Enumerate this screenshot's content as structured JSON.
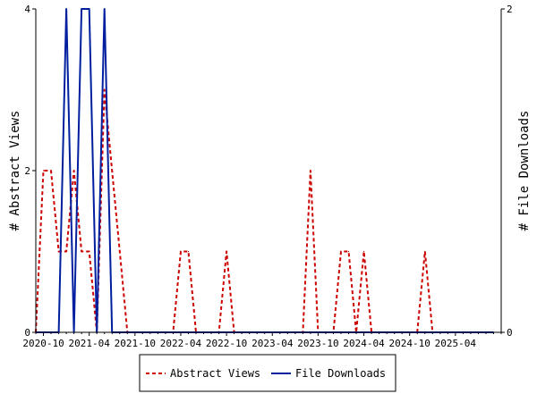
{
  "chart_data": {
    "type": "line",
    "title": "",
    "x": [
      "2020-09",
      "2020-10",
      "2020-11",
      "2020-12",
      "2021-01",
      "2021-02",
      "2021-03",
      "2021-04",
      "2021-05",
      "2021-06",
      "2021-07",
      "2021-08",
      "2021-09",
      "2021-10",
      "2021-11",
      "2021-12",
      "2022-01",
      "2022-02",
      "2022-03",
      "2022-04",
      "2022-05",
      "2022-06",
      "2022-07",
      "2022-08",
      "2022-09",
      "2022-10",
      "2022-11",
      "2022-12",
      "2023-01",
      "2023-02",
      "2023-03",
      "2023-04",
      "2023-05",
      "2023-06",
      "2023-07",
      "2023-08",
      "2023-09",
      "2023-10",
      "2023-11",
      "2023-12",
      "2024-01",
      "2024-02",
      "2024-03",
      "2024-04",
      "2024-05",
      "2024-06",
      "2024-07",
      "2024-08",
      "2024-09",
      "2024-10",
      "2024-11",
      "2024-12",
      "2025-01",
      "2025-02",
      "2025-03",
      "2025-04",
      "2025-05",
      "2025-06",
      "2025-07",
      "2025-08",
      "2025-09"
    ],
    "x_tick_labels": [
      "2020-10",
      "2021-04",
      "2021-10",
      "2022-04",
      "2022-10",
      "2023-04",
      "2023-10",
      "2024-04",
      "2024-10",
      "2025-04"
    ],
    "y_left": {
      "label": "# Abstract Views",
      "ticks": [
        "0",
        "2",
        "4"
      ],
      "range": [
        0,
        4
      ]
    },
    "y_right": {
      "label": "# File Downloads",
      "ticks": [
        "0",
        "2"
      ],
      "range": [
        0,
        2
      ]
    },
    "series": [
      {
        "name": "Abstract Views",
        "axis": "left",
        "color": "#cc0000",
        "style": "dashed",
        "values": [
          0,
          2,
          2,
          1,
          1,
          2,
          1,
          1,
          0,
          3,
          2,
          1,
          0,
          0,
          0,
          0,
          0,
          0,
          0,
          1,
          1,
          0,
          0,
          0,
          0,
          1,
          0,
          0,
          0,
          0,
          0,
          0,
          0,
          0,
          0,
          0,
          2,
          0,
          0,
          0,
          1,
          1,
          0,
          1,
          0,
          0,
          0,
          0,
          0,
          0,
          0,
          1,
          0,
          0,
          0,
          0,
          0,
          0,
          0,
          0,
          0
        ]
      },
      {
        "name": "File Downloads",
        "axis": "right",
        "color": "#001f9f",
        "style": "solid",
        "values": [
          0,
          0,
          0,
          0,
          2,
          0,
          2,
          2,
          0,
          2,
          0,
          0,
          0,
          0,
          0,
          0,
          0,
          0,
          0,
          0,
          0,
          0,
          0,
          0,
          0,
          0,
          0,
          0,
          0,
          0,
          0,
          0,
          0,
          0,
          0,
          0,
          0,
          0,
          0,
          0,
          0,
          0,
          0,
          0,
          0,
          0,
          0,
          0,
          0,
          0,
          0,
          0,
          0,
          0,
          0,
          0,
          0,
          0,
          0,
          0,
          0
        ]
      }
    ],
    "legend": {
      "position": "bottom",
      "entries": [
        "Abstract Views",
        "File Downloads"
      ]
    },
    "grid": false
  }
}
